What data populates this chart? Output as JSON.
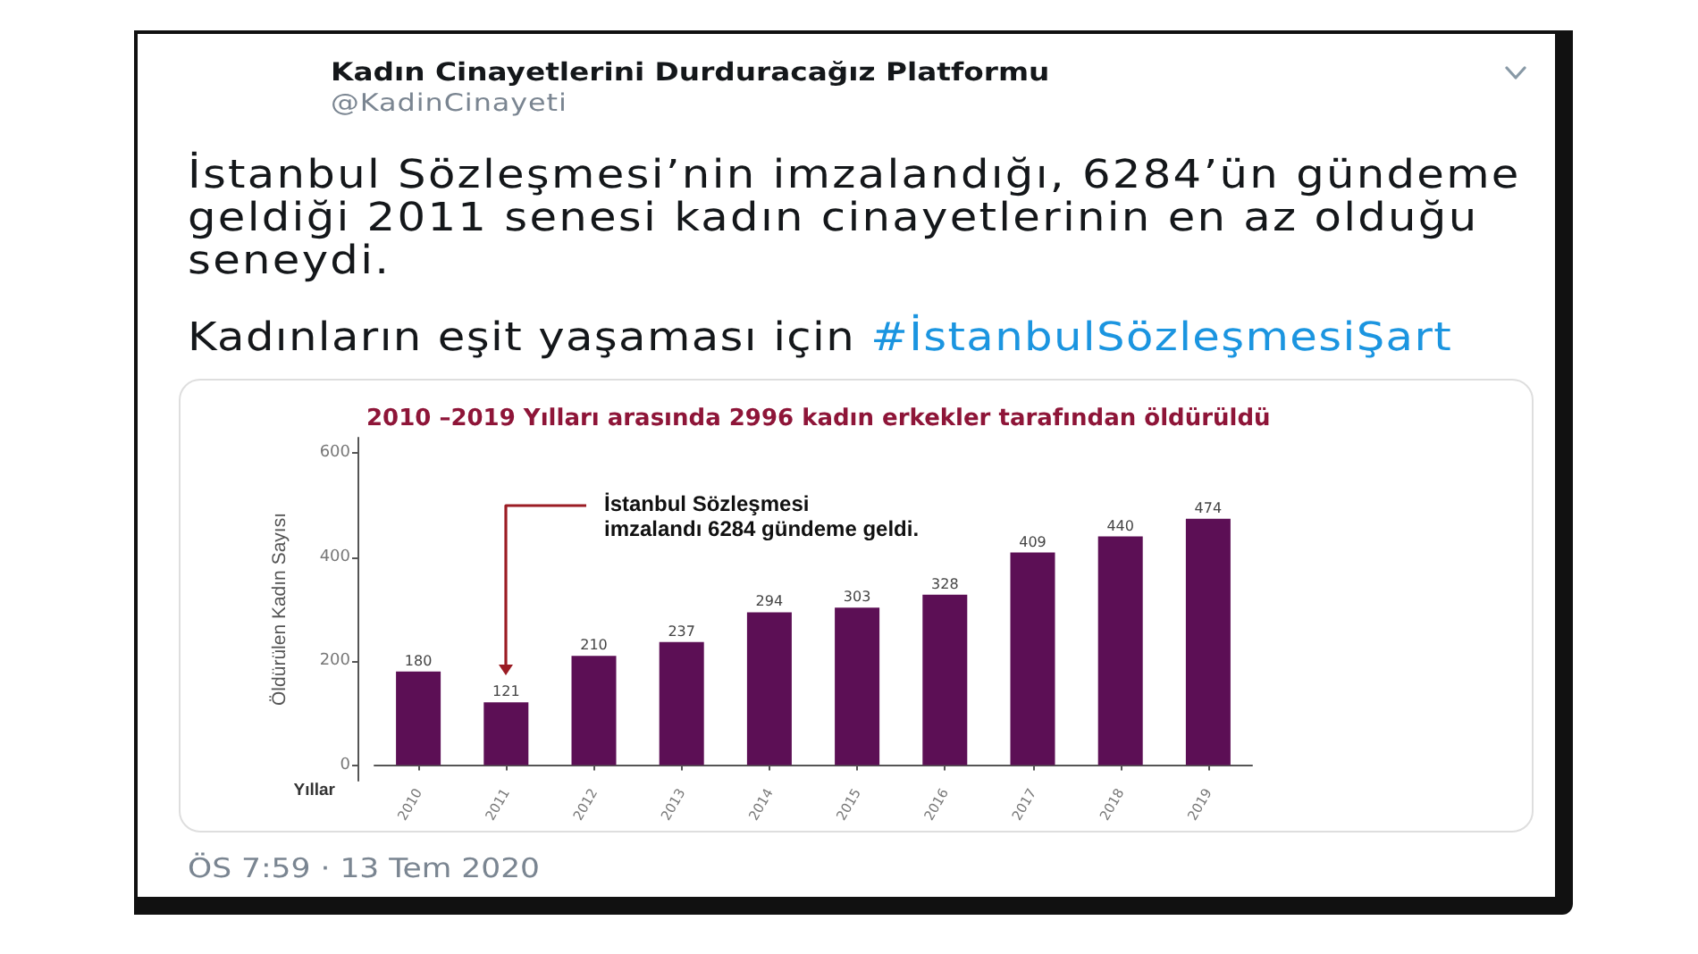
{
  "chart_data": {
    "type": "bar",
    "title": "2010 –2019 Yılları arasında 2996 kadın erkekler tarafından öldürüldü",
    "xlabel": "Yıllar",
    "ylabel": "Öldürülen Kadın Sayısı",
    "categories": [
      "2010",
      "2011",
      "2012",
      "2013",
      "2014",
      "2015",
      "2016",
      "2017",
      "2018",
      "2019"
    ],
    "values": [
      180,
      121,
      210,
      237,
      294,
      303,
      328,
      409,
      440,
      474
    ],
    "color": "#5c0f55",
    "ylim": [
      -30,
      630
    ],
    "yticks": [
      0,
      200,
      400,
      600
    ],
    "grid": false,
    "data_labels": true,
    "annotations": [
      "Kadın Cinayetlerini Durduracağız Platformu",
      "@KadinCinayeti",
      "İstanbul Sözleşmesi’nin imzalandığı, 6284’ün gündeme geldiği 2011 senesi kadın cinayetlerinin en az olduğu seneydi.",
      "Kadınların eşit yaşaması için",
      "#İstanbulSözleşmesiŞart",
      "İstanbul Sözleşmesi imzalandı 6284 gündeme geldi.",
      "ÖS 7:59 · 13 Tem 2020"
    ]
  }
}
